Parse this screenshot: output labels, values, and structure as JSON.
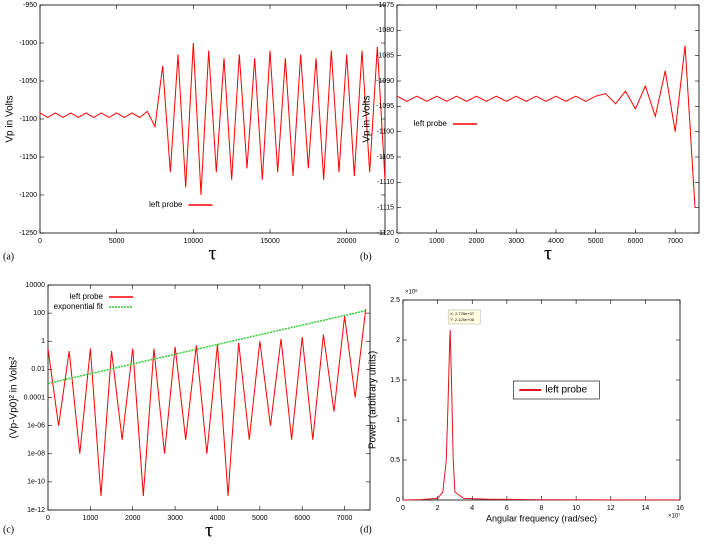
{
  "chart_data": [
    {
      "type": "line",
      "panel_label": "(a)",
      "xlabel": "τ",
      "ylabel": "Vp in Volts",
      "xlim": [
        0,
        22500
      ],
      "xticks": [
        0,
        5000,
        10000,
        15000,
        20000
      ],
      "ylim": [
        -1250,
        -950
      ],
      "yticks": [
        -1250,
        -1200,
        -1150,
        -1100,
        -1050,
        -1000,
        -950
      ],
      "legend": "lower center",
      "x": [
        0,
        500,
        1000,
        1500,
        2000,
        2500,
        3000,
        3500,
        4000,
        4500,
        5000,
        5500,
        6000,
        6500,
        7000,
        7500,
        8000,
        8500,
        9000,
        9500,
        10000,
        10500,
        11000,
        11500,
        12000,
        12500,
        13000,
        13500,
        14000,
        14500,
        15000,
        15500,
        16000,
        16500,
        17000,
        17500,
        18000,
        18500,
        19000,
        19500,
        20000,
        20500,
        21000,
        21500,
        22000,
        22500
      ],
      "series": [
        {
          "name": "left probe",
          "color": "#ff0000",
          "values": [
            -1092,
            -1098,
            -1092,
            -1098,
            -1092,
            -1098,
            -1092,
            -1098,
            -1092,
            -1098,
            -1092,
            -1098,
            -1092,
            -1098,
            -1090,
            -1110,
            -1030,
            -1170,
            -1015,
            -1190,
            -1000,
            -1200,
            -1010,
            -1170,
            -1020,
            -1180,
            -1015,
            -1165,
            -1020,
            -1180,
            -1010,
            -1170,
            -1020,
            -1175,
            -1015,
            -1165,
            -1020,
            -1180,
            -1010,
            -1170,
            -1015,
            -1175,
            -1010,
            -1170,
            -1005,
            -1180
          ]
        }
      ]
    },
    {
      "type": "line",
      "panel_label": "(b)",
      "xlabel": "τ",
      "ylabel": "Vp in Volts",
      "xlim": [
        0,
        7600
      ],
      "xticks": [
        0,
        1000,
        2000,
        3000,
        4000,
        5000,
        6000,
        7000
      ],
      "ylim": [
        -1120,
        -1075
      ],
      "yticks": [
        -1120,
        -1115,
        -1110,
        -1105,
        -1100,
        -1095,
        -1090,
        -1085,
        -1080,
        -1075
      ],
      "legend": "center left",
      "x": [
        0,
        250,
        500,
        750,
        1000,
        1250,
        1500,
        1750,
        2000,
        2250,
        2500,
        2750,
        3000,
        3250,
        3500,
        3750,
        4000,
        4250,
        4500,
        4750,
        5000,
        5250,
        5500,
        5750,
        6000,
        6250,
        6500,
        6750,
        7000,
        7250,
        7500
      ],
      "series": [
        {
          "name": "left probe",
          "color": "#ff0000",
          "values": [
            -1093,
            -1094,
            -1093,
            -1094,
            -1093,
            -1094,
            -1093,
            -1094,
            -1093,
            -1094,
            -1093,
            -1094,
            -1093,
            -1094,
            -1093,
            -1094,
            -1093,
            -1094,
            -1093,
            -1094,
            -1093,
            -1092.5,
            -1094.5,
            -1092,
            -1095.5,
            -1091,
            -1097,
            -1088,
            -1100,
            -1083,
            -1115
          ]
        }
      ]
    },
    {
      "type": "line",
      "panel_label": "(c)",
      "xlabel": "τ",
      "ylabel": "(Vp-Vp0)² in Volts²",
      "ylog": true,
      "xlim": [
        0,
        7600
      ],
      "xticks": [
        0,
        1000,
        2000,
        3000,
        4000,
        5000,
        6000,
        7000
      ],
      "ylim": [
        1e-12,
        10000
      ],
      "yticks": [
        1e-12,
        1e-10,
        {
          "value": 1e-08,
          "label": "1e-08"
        },
        {
          "value": 1e-06,
          "label": "1e-06"
        },
        0.0001,
        0.01,
        1,
        100,
        10000
      ],
      "legend": "upper left",
      "series": [
        {
          "name": "left probe",
          "color": "#ff0000",
          "x": [
            0,
            250,
            500,
            750,
            1000,
            1250,
            1500,
            1750,
            2000,
            2250,
            2500,
            2750,
            3000,
            3250,
            3500,
            3750,
            4000,
            4250,
            4500,
            4750,
            5000,
            5250,
            5500,
            5750,
            6000,
            6250,
            6500,
            6750,
            7000,
            7250,
            7500
          ],
          "values": [
            0.3,
            1e-06,
            0.2,
            1e-08,
            0.3,
            1e-11,
            0.2,
            1e-07,
            0.3,
            1e-11,
            0.3,
            1e-08,
            0.4,
            1e-07,
            0.5,
            1e-08,
            0.6,
            1e-11,
            0.8,
            1e-07,
            1,
            1e-06,
            1.5,
            1e-07,
            2,
            1e-07,
            3,
            1e-05,
            60,
            0.0001,
            200
          ]
        },
        {
          "name": "exponential fit",
          "color": "#33cc33",
          "linestyle": "dotted",
          "x": [
            0,
            2500,
            5000,
            7500
          ],
          "values": [
            0.001,
            0.054,
            2.9,
            150
          ]
        }
      ]
    },
    {
      "type": "line",
      "panel_label": "(d)",
      "xlabel": "Angular frequency (rad/sec)",
      "ylabel": "Power (arbitrary units)",
      "x_exponent": "×10⁷",
      "y_exponent": "×10⁶",
      "xlim": [
        0,
        160000000
      ],
      "xticks": [
        0,
        {
          "value": 20000000,
          "label": "2"
        },
        {
          "value": 40000000,
          "label": "4"
        },
        {
          "value": 60000000,
          "label": "6"
        },
        {
          "value": 80000000,
          "label": "8"
        },
        {
          "value": 100000000,
          "label": "10"
        },
        {
          "value": 120000000,
          "label": "12"
        },
        {
          "value": 140000000,
          "label": "14"
        },
        {
          "value": 160000000,
          "label": "16"
        }
      ],
      "ylim": [
        0,
        2500000
      ],
      "yticks": [
        0,
        {
          "value": 500000,
          "label": "0.5"
        },
        {
          "value": 1000000,
          "label": "1"
        },
        {
          "value": 1500000,
          "label": "1.5"
        },
        {
          "value": 2000000,
          "label": "2"
        },
        {
          "value": 2500000,
          "label": "2.5"
        }
      ],
      "legend": "center right",
      "annotations": [
        "X: 2.725e+07",
        "Y: 2.125e+06"
      ],
      "x": [
        0,
        10000000,
        20000000,
        23000000,
        25000000,
        26000000,
        27000000,
        27250000,
        28000000,
        29000000,
        30000000,
        35000000,
        50000000,
        80000000,
        120000000,
        160000000
      ],
      "series": [
        {
          "name": "left probe",
          "color": "#e0141e",
          "values": [
            0,
            5000,
            20000,
            100000,
            500000,
            1200000,
            2000000,
            2125000,
            1500000,
            500000,
            100000,
            20000,
            10000,
            3000,
            2000,
            1000
          ]
        }
      ]
    }
  ]
}
